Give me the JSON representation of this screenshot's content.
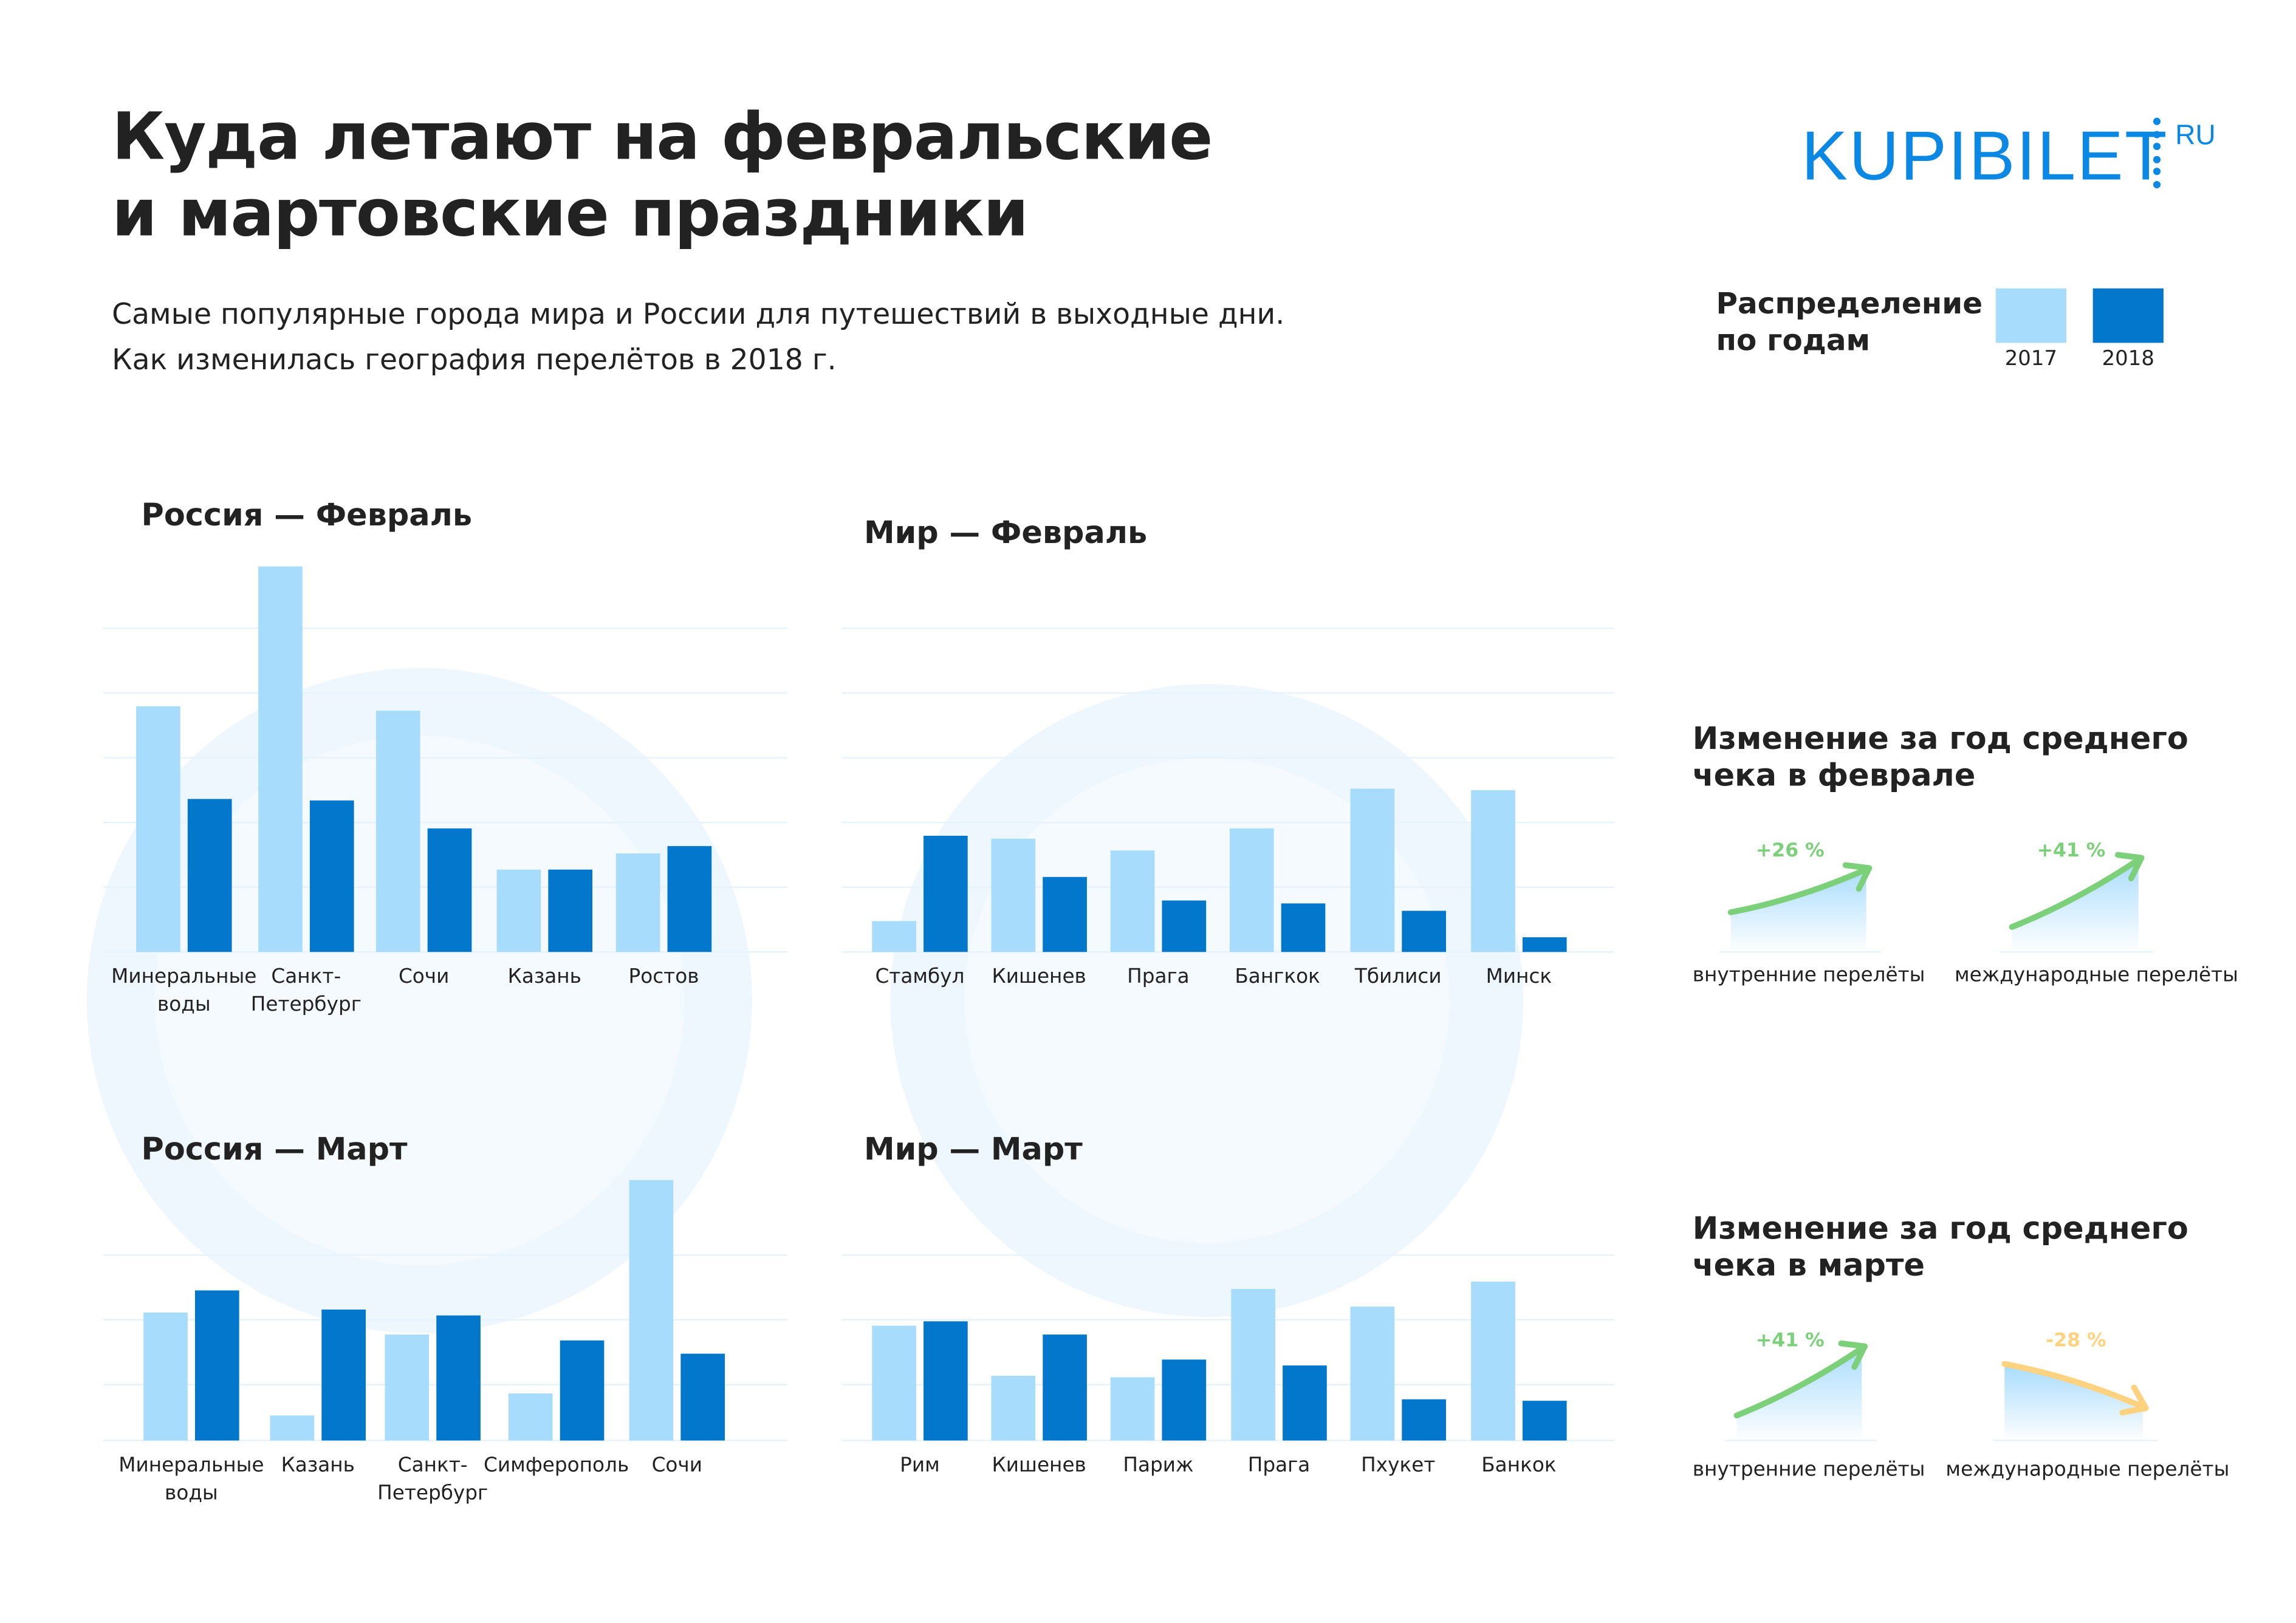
{
  "header": {
    "title": "Куда летают на февральские\nи мартовские праздники",
    "subtitle": "Самые популярные города мира и России для путешествий в выходные дни.\nКак изменилась география перелётов в 2018 г.",
    "logo": {
      "text": "KUPIBILET",
      "suffix": "RU"
    }
  },
  "legend": {
    "title": "Распределение\nпо годам",
    "items": [
      {
        "label": "2017",
        "color": "#a8dcfd"
      },
      {
        "label": "2018",
        "color": "#0277cc"
      }
    ]
  },
  "chart_data": [
    {
      "type": "bar",
      "title": "Россия — Февраль",
      "categories": [
        "Минеральные\nводы",
        "Санкт-\nПетербург",
        "Сочи",
        "Казань",
        "Ростов"
      ],
      "series": [
        {
          "name": "2017",
          "values": [
            167,
            262,
            164,
            56,
            67
          ]
        },
        {
          "name": "2018",
          "values": [
            104,
            103,
            84,
            56,
            72
          ]
        }
      ],
      "grid": true,
      "ylim": [
        0,
        270
      ]
    },
    {
      "type": "bar",
      "title": "Мир — Февраль",
      "categories": [
        "Стамбул",
        "Кишенев",
        "Прага",
        "Бангкок",
        "Тбилиси",
        "Минск"
      ],
      "series": [
        {
          "name": "2017",
          "values": [
            21,
            77,
            69,
            84,
            111,
            110
          ]
        },
        {
          "name": "2018",
          "values": [
            79,
            51,
            35,
            33,
            28,
            10
          ]
        }
      ],
      "grid": true,
      "ylim": [
        0,
        270
      ]
    },
    {
      "type": "bar",
      "title": "Россия — Март",
      "categories": [
        "Минеральные\nводы",
        "Казань",
        "Санкт-\nПетербург",
        "Симферополь",
        "Сочи"
      ],
      "series": [
        {
          "name": "2017",
          "values": [
            87,
            17,
            72,
            32,
            177
          ]
        },
        {
          "name": "2018",
          "values": [
            102,
            89,
            85,
            68,
            59
          ]
        }
      ],
      "grid": true,
      "ylim": [
        0,
        180
      ]
    },
    {
      "type": "bar",
      "title": "Мир — Март",
      "categories": [
        "Рим",
        "Кишенев",
        "Париж",
        "Прага",
        "Пхукет",
        "Банкок"
      ],
      "series": [
        {
          "name": "2017",
          "values": [
            78,
            44,
            43,
            103,
            91,
            108
          ]
        },
        {
          "name": "2018",
          "values": [
            81,
            72,
            55,
            51,
            28,
            27
          ]
        }
      ],
      "grid": true,
      "ylim": [
        0,
        180
      ]
    }
  ],
  "trends": {
    "february": {
      "title": "Изменение за год среднего\nчека в феврале",
      "domestic": {
        "label": "внутренние перелёты",
        "change": "+26 %",
        "color": "#7cd07a"
      },
      "international": {
        "label": "международные перелёты",
        "change": "+41 %",
        "color": "#7cd07a"
      }
    },
    "march": {
      "title": "Изменение за год среднего\nчека в марте",
      "domestic": {
        "label": "внутренние перелёты",
        "change": "+41 %",
        "color": "#7cd07a"
      },
      "international": {
        "label": "международные перелёты",
        "change": "-28 %",
        "color": "#ffd27f"
      }
    }
  }
}
